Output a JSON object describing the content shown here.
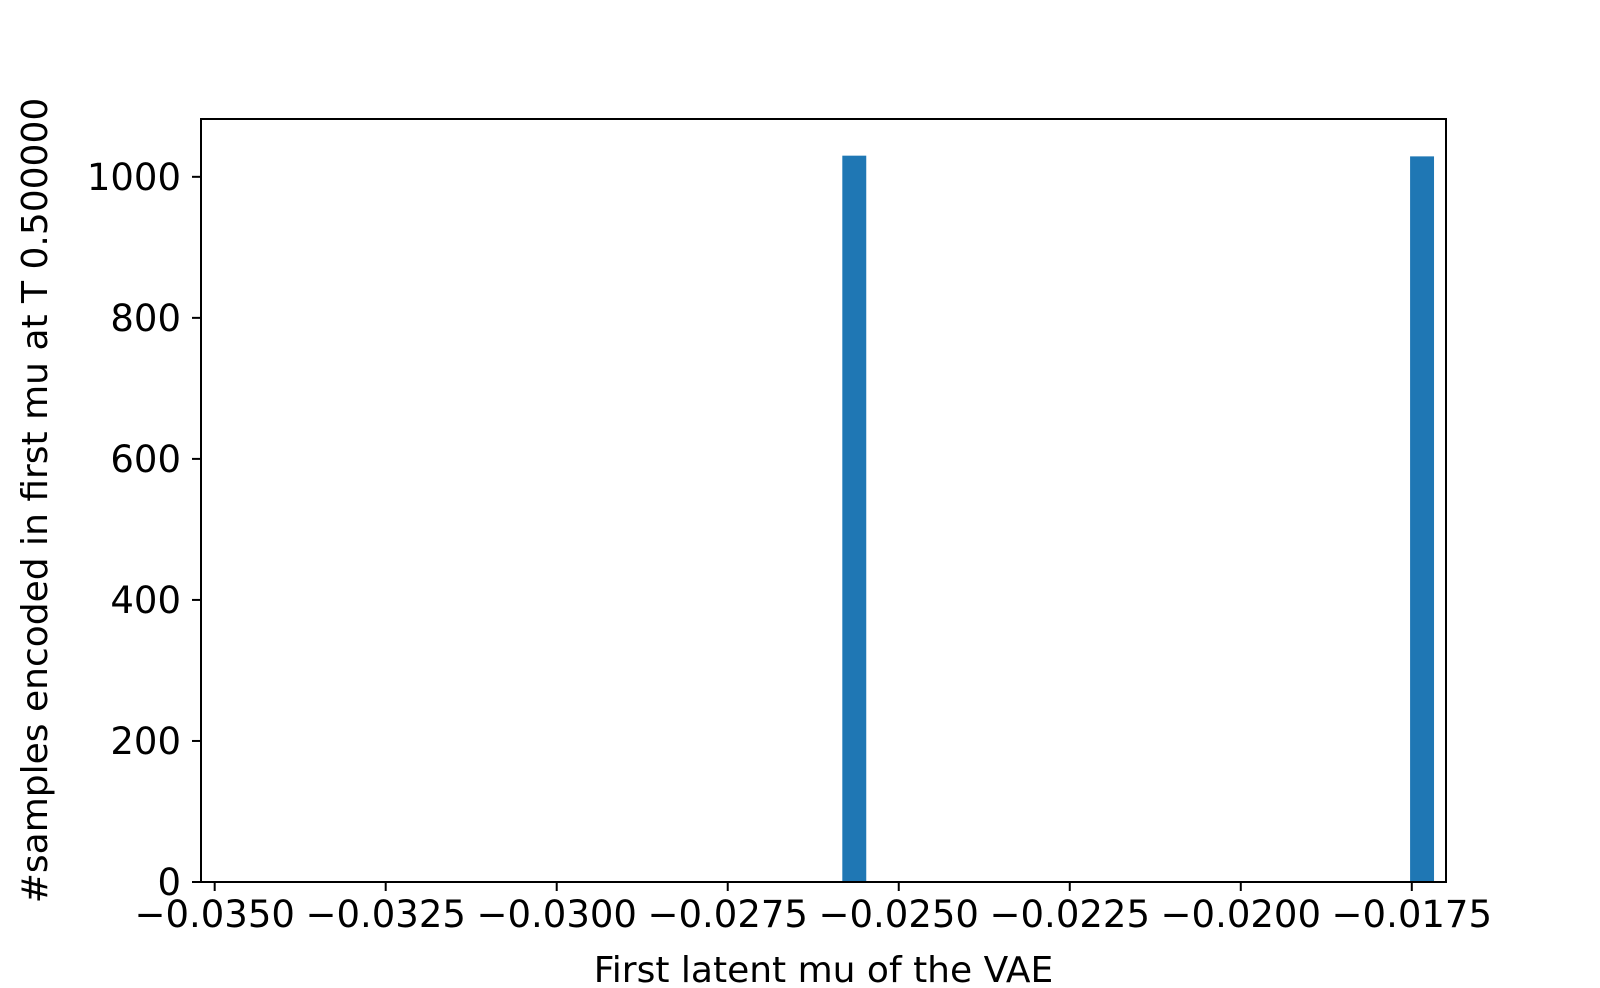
{
  "chart_data": {
    "type": "bar",
    "title": "",
    "xlabel": "First latent mu of the VAE",
    "ylabel": "#samples encoded in first mu at T 0.500000",
    "xlim": [
      -0.0352,
      -0.017
    ],
    "ylim": [
      0,
      1082
    ],
    "xticks": [
      -0.035,
      -0.0325,
      -0.03,
      -0.0275,
      -0.025,
      -0.0225,
      -0.02,
      -0.0175
    ],
    "xtick_labels": [
      "−0.0350",
      "−0.0325",
      "−0.0300",
      "−0.0275",
      "−0.0250",
      "−0.0225",
      "−0.0200",
      "−0.0175"
    ],
    "yticks": [
      0,
      200,
      400,
      600,
      800,
      1000
    ],
    "ytick_labels": [
      "0",
      "200",
      "400",
      "600",
      "800",
      "1000"
    ],
    "bar_width": 0.00035,
    "bars": [
      {
        "x": -0.02565,
        "value": 1030
      },
      {
        "x": -0.01735,
        "value": 1029
      }
    ],
    "bar_color": "#1f77b4",
    "grid": false,
    "legend": "none"
  }
}
